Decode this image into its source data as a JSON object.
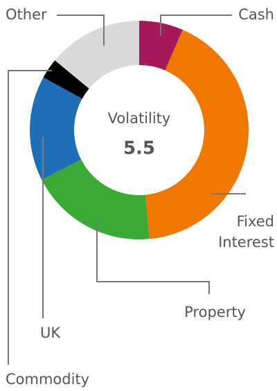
{
  "chart_data": {
    "type": "pie",
    "center_label": "Volatility",
    "center_value": "5.5",
    "categories": [
      "Cash",
      "Fixed Interest",
      "Property",
      "UK",
      "Commodity",
      "Other"
    ],
    "values": [
      6.5,
      42,
      19,
      15.5,
      3,
      14
    ],
    "colors": [
      "#a3195b",
      "#f07800",
      "#3aaa35",
      "#1f6fb8",
      "#000000",
      "#d9d9d9"
    ]
  }
}
